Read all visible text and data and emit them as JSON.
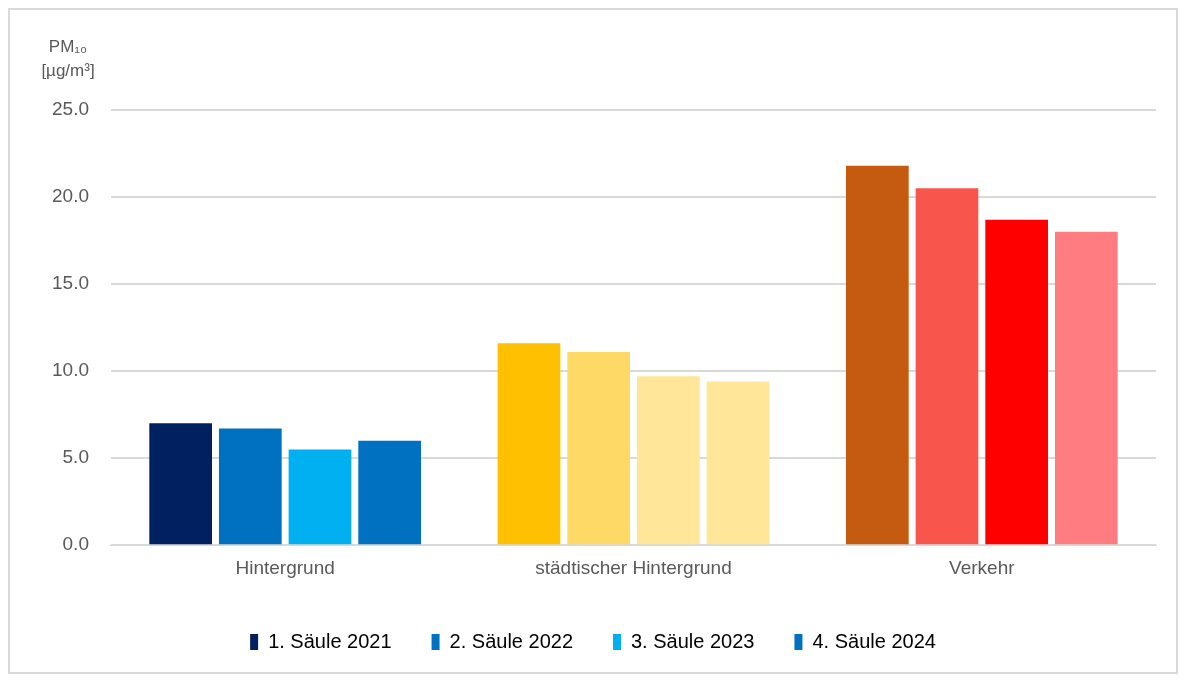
{
  "chart_data": {
    "type": "bar",
    "ylabel": "PM₁₀ [µg/m³]",
    "categories": [
      "Hintergrund",
      "städtischer Hintergrund",
      "Verkehr"
    ],
    "series": [
      {
        "name": "1. Säule 2021",
        "colors": [
          "#002060",
          "#fec000",
          "#c55a11"
        ],
        "values": [
          7.0,
          11.6,
          21.8
        ]
      },
      {
        "name": "2. Säule 2022",
        "colors": [
          "#0070c0",
          "#ffd966",
          "#f8564d"
        ],
        "values": [
          6.7,
          11.1,
          20.5
        ]
      },
      {
        "name": "3. Säule 2023",
        "colors": [
          "#00b0f0",
          "#ffe699",
          "#ff0000"
        ],
        "values": [
          5.5,
          9.7,
          18.7
        ]
      },
      {
        "name": "4. Säule 2024",
        "colors": [
          "#0070c0",
          "#ffe699",
          "#ff7c80"
        ],
        "values": [
          6.0,
          9.4,
          18.0
        ]
      }
    ],
    "ylim": [
      0,
      25
    ],
    "yticks": [
      {
        "value": 0,
        "label": "0.0"
      },
      {
        "value": 5,
        "label": "5.0"
      },
      {
        "value": 10,
        "label": "10.0"
      },
      {
        "value": 15,
        "label": "15.0"
      },
      {
        "value": 20,
        "label": "20.0"
      },
      {
        "value": 25,
        "label": "25.0"
      }
    ],
    "grid": "y",
    "legend": "bottom"
  }
}
